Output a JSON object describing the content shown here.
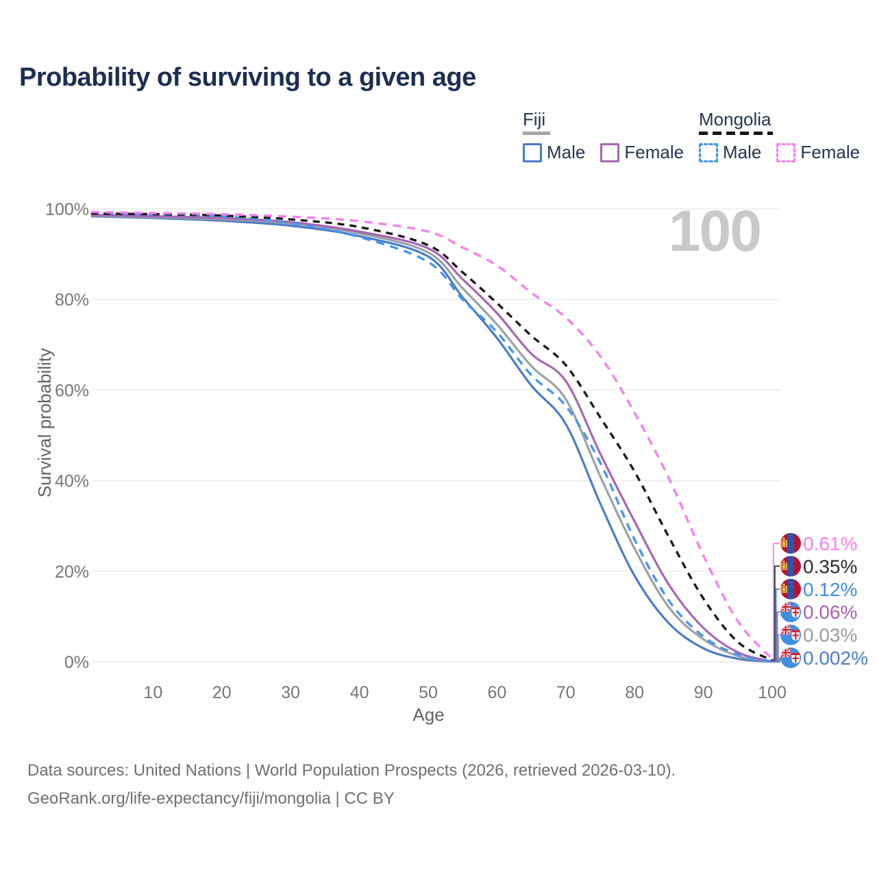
{
  "title": "Probability of surviving to a given age",
  "watermark_age": "100",
  "legend": {
    "groups": [
      {
        "name": "Fiji",
        "items": [
          {
            "label": "Male"
          },
          {
            "label": "Female"
          }
        ]
      },
      {
        "name": "Mongolia",
        "items": [
          {
            "label": "Male"
          },
          {
            "label": "Female"
          }
        ]
      }
    ],
    "swatches": {
      "fiji_male": {
        "color": "#4a7bc8",
        "dashed": false
      },
      "fiji_female": {
        "color": "#a765b2",
        "dashed": false
      },
      "mongolia_male": {
        "color": "#4595f0",
        "dashed": true
      },
      "mongolia_female): ": null,
      "mongolia_female": {
        "color": "#f97ef0",
        "dashed": true
      }
    }
  },
  "axes": {
    "y": {
      "label": "Survival probability",
      "ticks": [
        "0%",
        "20%",
        "40%",
        "60%",
        "80%",
        "100%"
      ],
      "tick_values": [
        0,
        20,
        40,
        60,
        80,
        100
      ],
      "range": [
        0,
        100
      ]
    },
    "x": {
      "label": "Age",
      "ticks": [
        10,
        20,
        30,
        40,
        50,
        60,
        70,
        80,
        90,
        100
      ],
      "range": [
        0,
        100
      ]
    }
  },
  "chart_data": {
    "type": "line",
    "title": "Probability of surviving to a given age",
    "xlabel": "Age",
    "ylabel": "Survival probability",
    "ylim": [
      0,
      100
    ],
    "grid": "horizontal",
    "x": [
      1,
      10,
      20,
      30,
      40,
      50,
      55,
      60,
      65,
      70,
      75,
      80,
      85,
      90,
      95,
      100
    ],
    "series": [
      {
        "id": "mongolia-female",
        "name": "Mongolia Female",
        "country": "Mongolia",
        "sex": "Female",
        "color": "#f97ef0",
        "dashed": true,
        "values": [
          99.35,
          99.1,
          98.85,
          98.3,
          97.3,
          95.0,
          91.5,
          87.5,
          81.5,
          76.0,
          67.5,
          55.0,
          40.5,
          23.5,
          9.0,
          0.61
        ],
        "end_label": {
          "text": "0.61%",
          "color": "#f97ef0",
          "flag": "mongolia"
        }
      },
      {
        "id": "mongolia-total",
        "name": "Mongolia",
        "country": "Mongolia",
        "sex": "Both",
        "color": "#1a1a1a",
        "dashed": true,
        "values": [
          99.0,
          98.85,
          98.55,
          97.7,
          96.0,
          92.0,
          86.0,
          79.2,
          72.0,
          65.5,
          54.0,
          42.0,
          27.5,
          14.0,
          4.4,
          0.35
        ],
        "end_label": {
          "text": "0.35%",
          "color": "#2b2b2b",
          "flag": "mongolia"
        }
      },
      {
        "id": "mongolia-male",
        "name": "Mongolia Male",
        "country": "Mongolia",
        "sex": "Male",
        "color": "#4595f0",
        "dashed": true,
        "values": [
          99.1,
          98.8,
          98.35,
          96.9,
          93.8,
          88.3,
          80.0,
          72.8,
          63.3,
          56.5,
          44.0,
          27.0,
          13.5,
          5.6,
          1.6,
          0.12
        ],
        "end_label": {
          "text": "0.12%",
          "color": "#3c8df0",
          "flag": "mongolia"
        }
      },
      {
        "id": "fiji-female",
        "name": "Fiji Female",
        "country": "Fiji",
        "sex": "Female",
        "color": "#a765b2",
        "dashed": false,
        "values": [
          98.7,
          98.4,
          98.0,
          97.1,
          95.0,
          91.3,
          84.5,
          77.0,
          68.0,
          62.0,
          46.0,
          31.0,
          17.0,
          7.5,
          2.1,
          0.06
        ],
        "end_label": {
          "text": "0.06%",
          "color": "#a85fae",
          "flag": "fiji"
        }
      },
      {
        "id": "fiji-total",
        "name": "Fiji",
        "country": "Fiji",
        "sex": "Both",
        "color": "#9aa0a6",
        "dashed": false,
        "values": [
          98.55,
          98.2,
          97.7,
          96.8,
          94.6,
          90.4,
          82.5,
          74.5,
          65.3,
          58.0,
          41.0,
          25.0,
          12.0,
          5.0,
          1.3,
          0.03
        ],
        "end_label": {
          "text": "0.03%",
          "color": "#9a9a9a",
          "flag": "fiji"
        }
      },
      {
        "id": "fiji-male",
        "name": "Fiji Male",
        "country": "Fiji",
        "sex": "Male",
        "color": "#4a7bc8",
        "dashed": false,
        "values": [
          98.4,
          98.0,
          97.4,
          96.3,
          94.0,
          89.5,
          80.5,
          71.5,
          61.0,
          52.5,
          35.0,
          19.0,
          8.5,
          3.0,
          0.7,
          0.002
        ],
        "end_label": {
          "text": "0.002%",
          "color": "#4a7bc8",
          "flag": "fiji"
        }
      }
    ],
    "legend_position": "top-right",
    "gridline_color": "#ececec"
  },
  "flags": {
    "mongolia": {
      "red": "#b5122f",
      "blue": "#2a55ae",
      "yellow": "#f2c94c"
    },
    "fiji": {
      "blue": "#3f8ee4",
      "white": "#ffffff",
      "red": "#cf1f2f"
    }
  },
  "footer": {
    "line1": "Data sources: United Nations | World Population Prospects (2026, retrieved 2026-03-10).",
    "line2": "GeoRank.org/life-expectancy/fiji/mongolia | CC BY"
  }
}
